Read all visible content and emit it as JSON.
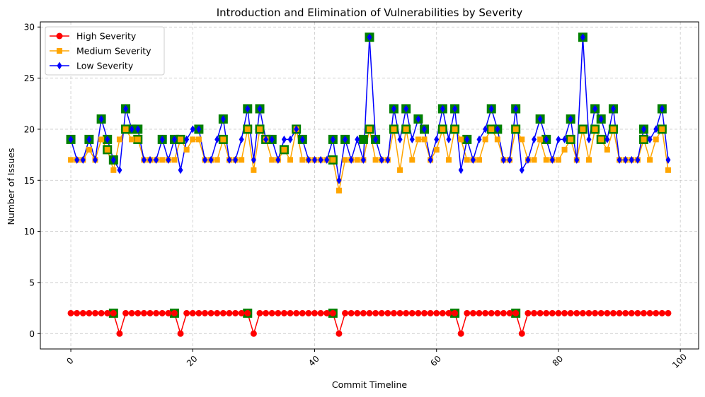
{
  "chart_data": {
    "type": "line",
    "title": "Introduction and Elimination of Vulnerabilities by Severity",
    "xlabel": "Commit Timeline",
    "ylabel": "Number of Issues",
    "xlim": [
      -5,
      103
    ],
    "ylim": [
      -1.5,
      30.5
    ],
    "xticks": [
      0,
      20,
      40,
      60,
      80,
      100
    ],
    "yticks": [
      0,
      5,
      10,
      15,
      20,
      25,
      30
    ],
    "grid": true,
    "legend_position": "top-left",
    "series": [
      {
        "name": "High Severity",
        "color": "#ff0000",
        "marker": "circle",
        "values": [
          2,
          2,
          2,
          2,
          2,
          2,
          2,
          2,
          0,
          2,
          2,
          2,
          2,
          2,
          2,
          2,
          2,
          2,
          0,
          2,
          2,
          2,
          2,
          2,
          2,
          2,
          2,
          2,
          2,
          2,
          0,
          2,
          2,
          2,
          2,
          2,
          2,
          2,
          2,
          2,
          2,
          2,
          2,
          2,
          0,
          2,
          2,
          2,
          2,
          2,
          2,
          2,
          2,
          2,
          2,
          2,
          2,
          2,
          2,
          2,
          2,
          2,
          2,
          2,
          0,
          2,
          2,
          2,
          2,
          2,
          2,
          2,
          2,
          2,
          0,
          2,
          2,
          2,
          2,
          2,
          2,
          2,
          2,
          2,
          2,
          2,
          2,
          2,
          2,
          2,
          2,
          2,
          2,
          2,
          2,
          2,
          2,
          2,
          2
        ]
      },
      {
        "name": "Medium Severity",
        "color": "#ffa500",
        "marker": "square",
        "values": [
          17,
          17,
          17,
          18,
          17,
          19,
          18,
          16,
          19,
          20,
          19,
          19,
          17,
          17,
          17,
          17,
          17,
          17,
          19,
          18,
          19,
          19,
          17,
          17,
          17,
          19,
          17,
          17,
          17,
          20,
          16,
          20,
          19,
          17,
          17,
          18,
          17,
          20,
          17,
          17,
          17,
          17,
          17,
          17,
          14,
          17,
          17,
          17,
          17,
          20,
          17,
          17,
          17,
          20,
          16,
          20,
          17,
          19,
          19,
          17,
          18,
          20,
          17,
          20,
          19,
          17,
          17,
          17,
          19,
          20,
          19,
          17,
          17,
          20,
          19,
          17,
          17,
          19,
          17,
          17,
          17,
          18,
          19,
          17,
          20,
          17,
          20,
          19,
          18,
          20,
          17,
          17,
          17,
          17,
          19,
          17,
          19,
          20,
          16
        ]
      },
      {
        "name": "Low Severity",
        "color": "#0000ff",
        "marker": "diamond",
        "values": [
          19,
          17,
          17,
          19,
          17,
          21,
          19,
          17,
          16,
          22,
          20,
          20,
          17,
          17,
          17,
          19,
          17,
          19,
          16,
          19,
          20,
          20,
          17,
          17,
          19,
          21,
          17,
          17,
          19,
          22,
          17,
          22,
          19,
          19,
          17,
          19,
          19,
          20,
          19,
          17,
          17,
          17,
          17,
          19,
          15,
          19,
          17,
          19,
          17,
          29,
          19,
          17,
          17,
          22,
          19,
          22,
          19,
          21,
          20,
          17,
          19,
          22,
          19,
          22,
          16,
          19,
          17,
          19,
          20,
          22,
          20,
          17,
          17,
          22,
          16,
          17,
          19,
          21,
          19,
          17,
          19,
          19,
          21,
          17,
          29,
          19,
          22,
          21,
          19,
          22,
          17,
          17,
          17,
          17,
          20,
          19,
          20,
          22,
          17
        ]
      }
    ],
    "highlights": {
      "color": "#008000",
      "marker": "square",
      "points": [
        [
          0,
          19
        ],
        [
          3,
          19
        ],
        [
          5,
          21
        ],
        [
          6,
          19
        ],
        [
          6,
          18
        ],
        [
          7,
          17
        ],
        [
          7,
          2
        ],
        [
          9,
          22
        ],
        [
          9,
          20
        ],
        [
          10,
          20
        ],
        [
          11,
          20
        ],
        [
          11,
          19
        ],
        [
          15,
          19
        ],
        [
          17,
          19
        ],
        [
          17,
          2
        ],
        [
          18,
          19
        ],
        [
          21,
          20
        ],
        [
          25,
          21
        ],
        [
          25,
          19
        ],
        [
          29,
          22
        ],
        [
          29,
          20
        ],
        [
          29,
          2
        ],
        [
          31,
          22
        ],
        [
          31,
          20
        ],
        [
          32,
          19
        ],
        [
          33,
          19
        ],
        [
          35,
          18
        ],
        [
          37,
          20
        ],
        [
          38,
          19
        ],
        [
          43,
          19
        ],
        [
          43,
          17
        ],
        [
          43,
          2
        ],
        [
          45,
          19
        ],
        [
          48,
          19
        ],
        [
          49,
          29
        ],
        [
          49,
          20
        ],
        [
          50,
          19
        ],
        [
          53,
          22
        ],
        [
          53,
          20
        ],
        [
          55,
          22
        ],
        [
          55,
          20
        ],
        [
          57,
          21
        ],
        [
          58,
          20
        ],
        [
          61,
          22
        ],
        [
          61,
          20
        ],
        [
          63,
          22
        ],
        [
          63,
          20
        ],
        [
          63,
          2
        ],
        [
          65,
          19
        ],
        [
          69,
          22
        ],
        [
          69,
          20
        ],
        [
          70,
          20
        ],
        [
          73,
          22
        ],
        [
          73,
          20
        ],
        [
          73,
          2
        ],
        [
          77,
          21
        ],
        [
          78,
          19
        ],
        [
          82,
          21
        ],
        [
          82,
          19
        ],
        [
          84,
          29
        ],
        [
          84,
          20
        ],
        [
          86,
          22
        ],
        [
          86,
          20
        ],
        [
          87,
          21
        ],
        [
          87,
          19
        ],
        [
          89,
          22
        ],
        [
          89,
          20
        ],
        [
          94,
          20
        ],
        [
          94,
          19
        ],
        [
          97,
          22
        ],
        [
          97,
          20
        ]
      ]
    }
  }
}
